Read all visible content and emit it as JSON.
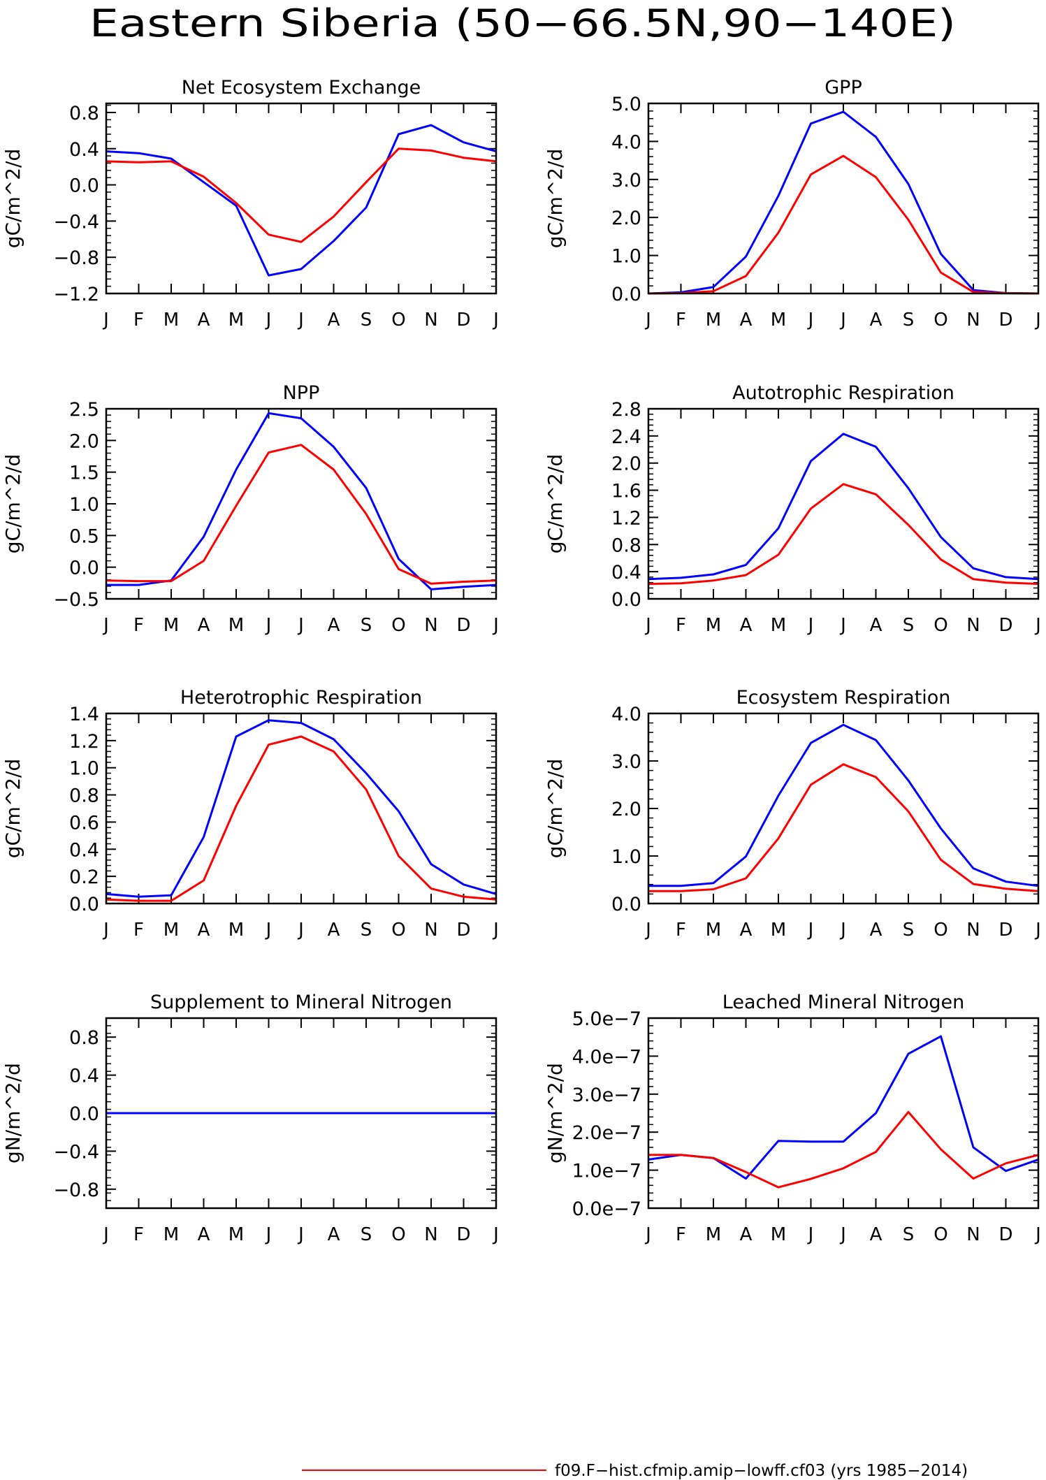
{
  "figure_title": "Eastern Siberia (50−66.5N,90−140E)",
  "month_labels": [
    "J",
    "F",
    "M",
    "A",
    "M",
    "J",
    "J",
    "A",
    "S",
    "O",
    "N",
    "D",
    "J"
  ],
  "legend": [
    {
      "label": "f09.F−hist.cfmip.amip−lowff.cf03 (yrs 1985−2014)",
      "color": "#ff0000"
    }
  ],
  "colors": {
    "red_series": "#ff0000",
    "blue_series": "#0000ff"
  },
  "chart_data": [
    {
      "type": "line",
      "title": "Net Ecosystem Exchange",
      "ylabel": "gC/m^2/d",
      "ylim": [
        -1.2,
        0.9
      ],
      "yticks": [
        -1.2,
        -0.8,
        -0.4,
        0.0,
        0.4,
        0.8
      ],
      "ytick_labels": [
        "−1.2",
        "−0.8",
        "−0.4",
        "0.0",
        "0.4",
        "0.8"
      ],
      "series": [
        {
          "color": "#0000ff",
          "values": [
            0.37,
            0.35,
            0.29,
            0.03,
            -0.23,
            -1.0,
            -0.93,
            -0.62,
            -0.25,
            0.56,
            0.66,
            0.47,
            0.37
          ]
        },
        {
          "color": "#ff0000",
          "values": [
            0.26,
            0.25,
            0.26,
            0.09,
            -0.2,
            -0.55,
            -0.63,
            -0.35,
            0.03,
            0.4,
            0.38,
            0.3,
            0.26
          ]
        }
      ]
    },
    {
      "type": "line",
      "title": "GPP",
      "ylabel": "gC/m^2/d",
      "ylim": [
        0.0,
        5.0
      ],
      "yticks": [
        0.0,
        1.0,
        2.0,
        3.0,
        4.0,
        5.0
      ],
      "ytick_labels": [
        "0.0",
        "1.0",
        "2.0",
        "3.0",
        "4.0",
        "5.0"
      ],
      "series": [
        {
          "color": "#0000ff",
          "values": [
            0.0,
            0.03,
            0.17,
            0.97,
            2.57,
            4.47,
            4.78,
            4.12,
            2.88,
            1.04,
            0.09,
            0.01,
            0.0
          ]
        },
        {
          "color": "#ff0000",
          "values": [
            0.0,
            0.01,
            0.06,
            0.46,
            1.6,
            3.13,
            3.62,
            3.06,
            1.94,
            0.55,
            0.04,
            0.01,
            0.0
          ]
        }
      ]
    },
    {
      "type": "line",
      "title": "NPP",
      "ylabel": "gC/m^2/d",
      "ylim": [
        -0.5,
        2.5
      ],
      "yticks": [
        -0.5,
        0.0,
        0.5,
        1.0,
        1.5,
        2.0,
        2.5
      ],
      "ytick_labels": [
        "−0.5",
        "0.0",
        "0.5",
        "1.0",
        "1.5",
        "2.0",
        "2.5"
      ],
      "series": [
        {
          "color": "#0000ff",
          "values": [
            -0.28,
            -0.28,
            -0.21,
            0.48,
            1.54,
            2.43,
            2.35,
            1.9,
            1.25,
            0.13,
            -0.35,
            -0.31,
            -0.28
          ]
        },
        {
          "color": "#ff0000",
          "values": [
            -0.21,
            -0.22,
            -0.22,
            0.1,
            0.97,
            1.81,
            1.93,
            1.54,
            0.84,
            -0.03,
            -0.26,
            -0.23,
            -0.21
          ]
        }
      ]
    },
    {
      "type": "line",
      "title": "Autotrophic Respiration",
      "ylabel": "gC/m^2/d",
      "ylim": [
        0.0,
        2.8
      ],
      "yticks": [
        0.0,
        0.4,
        0.8,
        1.2,
        1.6,
        2.0,
        2.4,
        2.8
      ],
      "ytick_labels": [
        "0.0",
        "0.4",
        "0.8",
        "1.2",
        "1.6",
        "2.0",
        "2.4",
        "2.8"
      ],
      "series": [
        {
          "color": "#0000ff",
          "values": [
            0.29,
            0.31,
            0.36,
            0.5,
            1.04,
            2.03,
            2.43,
            2.24,
            1.63,
            0.91,
            0.45,
            0.32,
            0.29
          ]
        },
        {
          "color": "#ff0000",
          "values": [
            0.22,
            0.23,
            0.27,
            0.35,
            0.65,
            1.33,
            1.69,
            1.54,
            1.09,
            0.58,
            0.29,
            0.24,
            0.22
          ]
        }
      ]
    },
    {
      "type": "line",
      "title": "Heterotrophic Respiration",
      "ylabel": "gC/m^2/d",
      "ylim": [
        0.0,
        1.4
      ],
      "yticks": [
        0.0,
        0.2,
        0.4,
        0.6,
        0.8,
        1.0,
        1.2,
        1.4
      ],
      "ytick_labels": [
        "0.0",
        "0.2",
        "0.4",
        "0.6",
        "0.8",
        "1.0",
        "1.2",
        "1.4"
      ],
      "series": [
        {
          "color": "#0000ff",
          "values": [
            0.07,
            0.05,
            0.06,
            0.49,
            1.23,
            1.35,
            1.33,
            1.21,
            0.96,
            0.68,
            0.29,
            0.14,
            0.07
          ]
        },
        {
          "color": "#ff0000",
          "values": [
            0.03,
            0.02,
            0.02,
            0.17,
            0.72,
            1.17,
            1.23,
            1.12,
            0.84,
            0.35,
            0.11,
            0.05,
            0.03
          ]
        }
      ]
    },
    {
      "type": "line",
      "title": "Ecosystem Respiration",
      "ylabel": "gC/m^2/d",
      "ylim": [
        0.0,
        4.0
      ],
      "yticks": [
        0.0,
        1.0,
        2.0,
        3.0,
        4.0
      ],
      "ytick_labels": [
        "0.0",
        "1.0",
        "2.0",
        "3.0",
        "4.0"
      ],
      "series": [
        {
          "color": "#0000ff",
          "values": [
            0.37,
            0.37,
            0.43,
            0.99,
            2.27,
            3.38,
            3.76,
            3.44,
            2.59,
            1.58,
            0.74,
            0.46,
            0.37
          ]
        },
        {
          "color": "#ff0000",
          "values": [
            0.26,
            0.26,
            0.3,
            0.53,
            1.37,
            2.5,
            2.93,
            2.66,
            1.94,
            0.92,
            0.41,
            0.31,
            0.26
          ]
        }
      ]
    },
    {
      "type": "line",
      "title": "Supplement to Mineral Nitrogen",
      "ylabel": "gN/m^2/d",
      "ylim": [
        -1.0,
        1.0
      ],
      "yticks": [
        -0.8,
        -0.4,
        0.0,
        0.4,
        0.8
      ],
      "ytick_labels": [
        "−0.8",
        "−0.4",
        "0.0",
        "0.4",
        "0.8"
      ],
      "series": [
        {
          "color": "#ff0000",
          "values": [
            0,
            0,
            0,
            0,
            0,
            0,
            0,
            0,
            0,
            0,
            0,
            0,
            0
          ]
        },
        {
          "color": "#0000ff",
          "values": [
            0,
            0,
            0,
            0,
            0,
            0,
            0,
            0,
            0,
            0,
            0,
            0,
            0
          ]
        }
      ]
    },
    {
      "type": "line",
      "title": "Leached Mineral Nitrogen",
      "ylabel": "gN/m^2/d",
      "ylim": [
        0.0,
        5e-07
      ],
      "yticks": [
        0.0,
        1e-07,
        2e-07,
        3e-07,
        4e-07,
        5e-07
      ],
      "ytick_labels": [
        "0.0e−7",
        "1.0e−7",
        "2.0e−7",
        "3.0e−7",
        "4.0e−7",
        "5.0e−7"
      ],
      "series": [
        {
          "color": "#0000ff",
          "values": [
            1.28e-07,
            1.4e-07,
            1.32e-07,
            7.8e-08,
            1.77e-07,
            1.75e-07,
            1.75e-07,
            2.5e-07,
            4.06e-07,
            4.52e-07,
            1.6e-07,
            9.8e-08,
            1.28e-07
          ]
        },
        {
          "color": "#ff0000",
          "values": [
            1.4e-07,
            1.4e-07,
            1.32e-07,
            9.5e-08,
            5.5e-08,
            7.7e-08,
            1.05e-07,
            1.48e-07,
            2.53e-07,
            1.55e-07,
            7.8e-08,
            1.18e-07,
            1.4e-07
          ]
        }
      ]
    }
  ]
}
